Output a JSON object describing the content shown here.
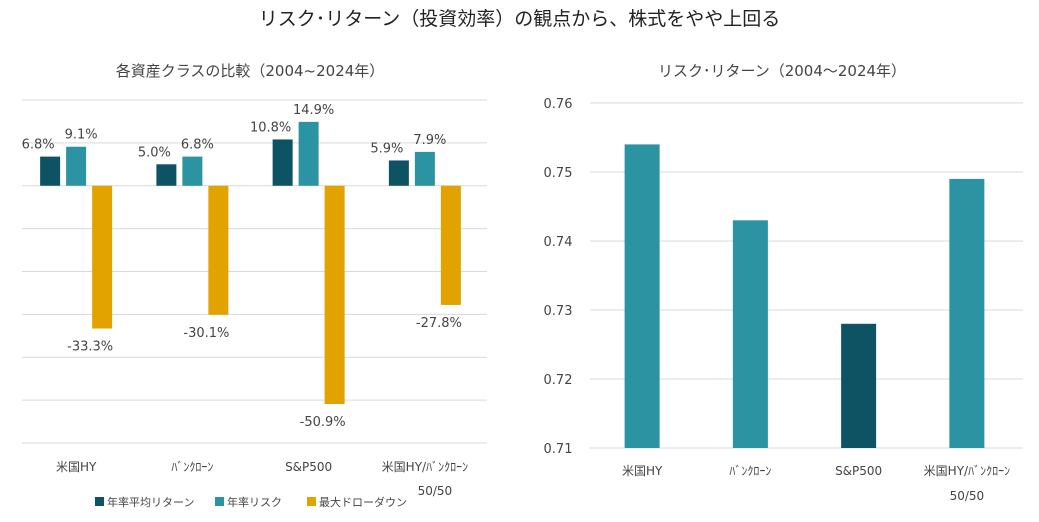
{
  "title": "リスク･リターン（投資効率）の観点から、株式をやや上回る",
  "colors": {
    "return": "#0e5364",
    "risk": "#2b93a2",
    "drawdown": "#e2a200"
  },
  "chart_data": [
    {
      "type": "bar",
      "title": "各資産クラスの比較（2004~2024年）",
      "categories": [
        "米国HY",
        "ﾊﾞﾝｸﾛｰﾝ",
        "S&P500",
        "米国HY/ﾊﾞﾝｸﾛｰﾝ"
      ],
      "category_sublabels": [
        "",
        "",
        "",
        "50/50"
      ],
      "series": [
        {
          "name": "年率平均リターン",
          "values": [
            6.8,
            5.0,
            10.8,
            5.9
          ],
          "labels": [
            "6.8%",
            "5.0%",
            "10.8%",
            "5.9%"
          ]
        },
        {
          "name": "年率リスク",
          "values": [
            9.1,
            6.8,
            14.9,
            7.9
          ],
          "labels": [
            "9.1%",
            "6.8%",
            "14.9%",
            "7.9%"
          ]
        },
        {
          "name": "最大ドローダウン",
          "values": [
            -33.3,
            -30.1,
            -50.9,
            -27.8
          ],
          "labels": [
            "-33.3%",
            "-30.1%",
            "-50.9%",
            "-27.8%"
          ]
        }
      ],
      "ylim": [
        -60,
        20
      ],
      "grid": true,
      "legend": "bottom"
    },
    {
      "type": "bar",
      "title": "リスク･リターン（2004～2024年）",
      "categories": [
        "米国HY",
        "ﾊﾞﾝｸﾛｰﾝ",
        "S&P500",
        "米国HY/ﾊﾞﾝｸﾛｰﾝ"
      ],
      "category_sublabels": [
        "",
        "",
        "",
        "50/50"
      ],
      "values": [
        0.754,
        0.743,
        0.728,
        0.749
      ],
      "highlight_index": 2,
      "yticks": [
        "0.71",
        "0.72",
        "0.73",
        "0.74",
        "0.75",
        "0.76"
      ],
      "ylim": [
        0.71,
        0.76
      ],
      "grid": true
    }
  ]
}
